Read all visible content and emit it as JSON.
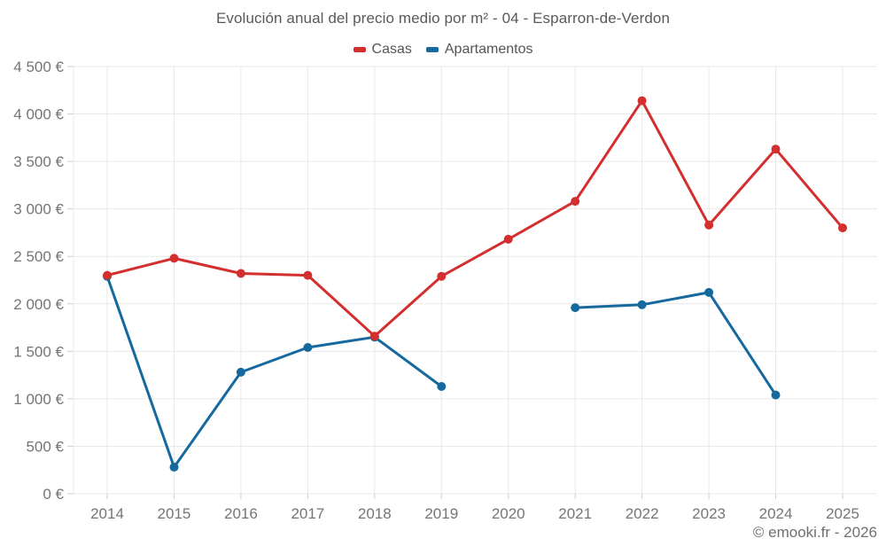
{
  "watermark": "© emooki.fr - 2026",
  "colors": {
    "casas": "#d32f2f",
    "apartamentos": "#15699e",
    "grid": "#e8e8e8",
    "tick": "#cfcfcf",
    "axis_text": "#757575",
    "title_text": "#595959",
    "legend_text": "#545454",
    "watermark_text": "#6f6f6f",
    "background": "#ffffff"
  },
  "chart_data": {
    "type": "line",
    "title": "Evolución anual del precio medio por m² - 04 - Esparron-de-Verdon",
    "xlabel": "",
    "ylabel": "",
    "categories": [
      "2014",
      "2015",
      "2016",
      "2017",
      "2018",
      "2019",
      "2020",
      "2021",
      "2022",
      "2023",
      "2024",
      "2025"
    ],
    "series": [
      {
        "name": "Casas",
        "color": "#d32f2f",
        "values": [
          2300,
          2480,
          2320,
          2300,
          1660,
          2290,
          2680,
          3080,
          4140,
          2830,
          3630,
          2800
        ]
      },
      {
        "name": "Apartamentos",
        "color": "#15699e",
        "values": [
          2290,
          280,
          1280,
          1540,
          1650,
          1130,
          null,
          1960,
          1990,
          2120,
          1040,
          null
        ]
      }
    ],
    "ylim": [
      0,
      4500
    ],
    "ytick_step": 500,
    "yticklabel_suffix": " €",
    "grid": true,
    "legend_position": "top",
    "marker_radius": 5,
    "line_width": 3
  }
}
